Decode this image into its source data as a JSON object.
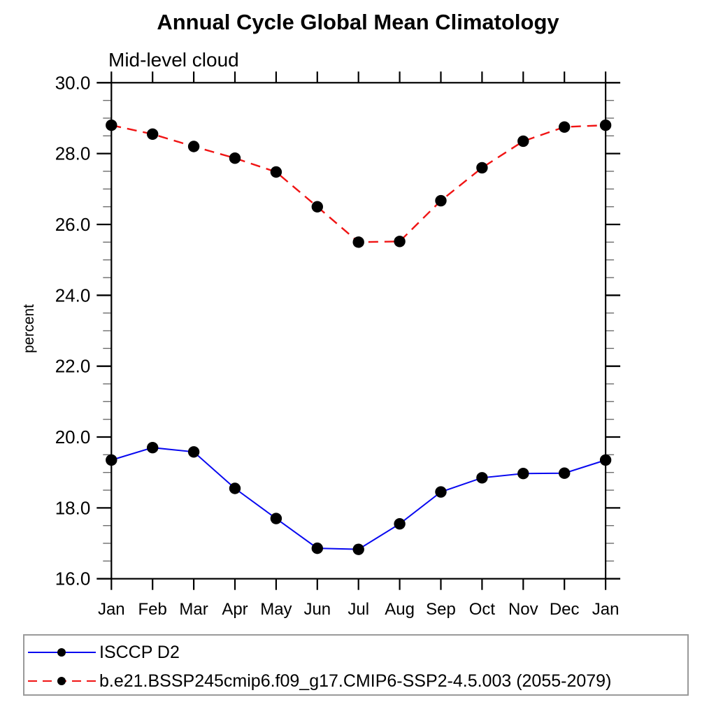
{
  "title": "Annual Cycle Global Mean Climatology",
  "subtitle": "Mid-level cloud",
  "y_axis_title": "percent",
  "chart_data": {
    "type": "line",
    "title": "Annual Cycle Global Mean Climatology",
    "subtitle": "Mid-level cloud",
    "xlabel": "",
    "ylabel": "percent",
    "ylim": [
      16.0,
      30.0
    ],
    "ytick_major_interval": 2.0,
    "ytick_minor_interval": 0.5,
    "ytick_labels": [
      "16.0",
      "18.0",
      "20.0",
      "22.0",
      "24.0",
      "26.0",
      "28.0",
      "30.0"
    ],
    "grid": false,
    "legend_position": "bottom-left-box",
    "marker": "filled-circle",
    "marker_color": "#000000",
    "categories": [
      "Jan",
      "Feb",
      "Mar",
      "Apr",
      "May",
      "Jun",
      "Jul",
      "Aug",
      "Sep",
      "Oct",
      "Nov",
      "Dec",
      "Jan"
    ],
    "series": [
      {
        "name": "ISCCP D2",
        "color": "#0808f0",
        "line_style": "solid",
        "values": [
          19.35,
          19.7,
          19.58,
          18.55,
          17.7,
          16.86,
          16.83,
          17.55,
          18.45,
          18.85,
          18.97,
          18.98,
          19.35
        ]
      },
      {
        "name": "b.e21.BSSP245cmip6.f09_g17.CMIP6-SSP2-4.5.003 (2055-2079)",
        "color": "#f01414",
        "line_style": "dashed",
        "values": [
          28.8,
          28.55,
          28.2,
          27.87,
          27.48,
          26.5,
          25.5,
          25.52,
          26.67,
          27.6,
          28.35,
          28.75,
          28.8
        ]
      }
    ]
  }
}
